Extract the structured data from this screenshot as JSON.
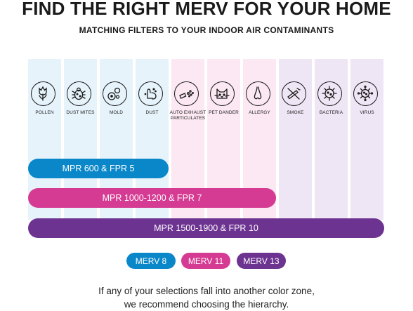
{
  "title": "FIND THE RIGHT MERV FOR YOUR HOME",
  "subtitle": "MATCHING FILTERS TO YOUR INDOOR AIR CONTAMINANTS",
  "contaminants": [
    {
      "label": "POLLEN",
      "icon": "pollen-flower-icon",
      "zone": "blue"
    },
    {
      "label": "DUST MITES",
      "icon": "dust-mite-icon",
      "zone": "blue"
    },
    {
      "label": "MOLD",
      "icon": "mold-spores-icon",
      "zone": "blue"
    },
    {
      "label": "DUST",
      "icon": "dust-icon",
      "zone": "blue"
    },
    {
      "label": "AUTO EXHAUST PARTICULATES",
      "icon": "exhaust-pipe-icon",
      "zone": "pink"
    },
    {
      "label": "PET DANDER",
      "icon": "cat-face-icon",
      "zone": "pink"
    },
    {
      "label": "ALLERGY",
      "icon": "nose-icon",
      "zone": "pink"
    },
    {
      "label": "SMOKE",
      "icon": "no-smoking-icon",
      "zone": "purple"
    },
    {
      "label": "BACTERIA",
      "icon": "bacteria-icon",
      "zone": "purple"
    },
    {
      "label": "VIRUS",
      "icon": "virus-icon",
      "zone": "purple"
    }
  ],
  "bars": [
    {
      "label": "MPR 600 & FPR 5",
      "zone": "blue",
      "covers": 4
    },
    {
      "label": "MPR 1000-1200 & FPR 7",
      "zone": "pink",
      "covers": 7
    },
    {
      "label": "MPR 1500-1900 & FPR 10",
      "zone": "purple",
      "covers": 10
    }
  ],
  "legend": [
    {
      "label": "MERV 8",
      "zone": "blue"
    },
    {
      "label": "MERV 11",
      "zone": "pink"
    },
    {
      "label": "MERV 13",
      "zone": "purple"
    }
  ],
  "note_line1": "If any of your selections fall into another color zone,",
  "note_line2": "we recommend choosing the hierarchy.",
  "colors": {
    "blue": "#0a87c9",
    "pink": "#d63b93",
    "purple": "#6d3391",
    "blue_tint": "#e6f3fb",
    "pink_tint": "#fbe8f2",
    "purple_tint": "#efe6f5"
  }
}
